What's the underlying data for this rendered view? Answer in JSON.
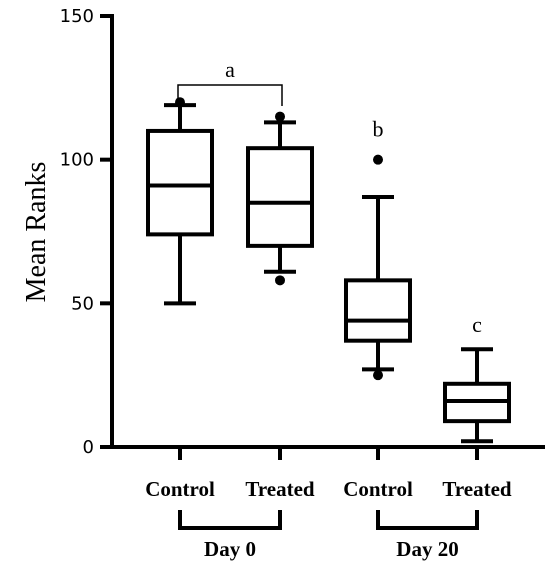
{
  "chart_data": {
    "type": "box",
    "ylabel": "Mean Ranks",
    "ylim": [
      0,
      150
    ],
    "yticks": [
      "0",
      "50",
      "100",
      "150"
    ],
    "categories": [
      "Control",
      "Treated",
      "Control",
      "Treated"
    ],
    "groups": [
      {
        "label": "Day 0",
        "members": [
          0,
          1
        ]
      },
      {
        "label": "Day 20",
        "members": [
          2,
          3
        ]
      }
    ],
    "boxes": [
      {
        "category": "Control",
        "whisker_low": 50,
        "q1": 74,
        "median": 91,
        "q3": 110,
        "whisker_high": 119,
        "outliers": [
          120
        ]
      },
      {
        "category": "Treated",
        "whisker_low": 61,
        "q1": 70,
        "median": 85,
        "q3": 104,
        "whisker_high": 113,
        "outliers": [
          115,
          58
        ]
      },
      {
        "category": "Control",
        "whisker_low": 27,
        "q1": 37,
        "median": 44,
        "q3": 58,
        "whisker_high": 87,
        "outliers": [
          100,
          25
        ]
      },
      {
        "category": "Treated",
        "whisker_low": 2,
        "q1": 9,
        "median": 16,
        "q3": 22,
        "whisker_high": 34,
        "outliers": []
      }
    ],
    "annotations": [
      {
        "text": "a",
        "bracket": [
          0,
          1
        ],
        "y": 126
      },
      {
        "text": "b",
        "box": 2,
        "y": 108
      },
      {
        "text": "c",
        "box": 3,
        "y": 40
      }
    ],
    "grid": false,
    "legend": "none"
  }
}
